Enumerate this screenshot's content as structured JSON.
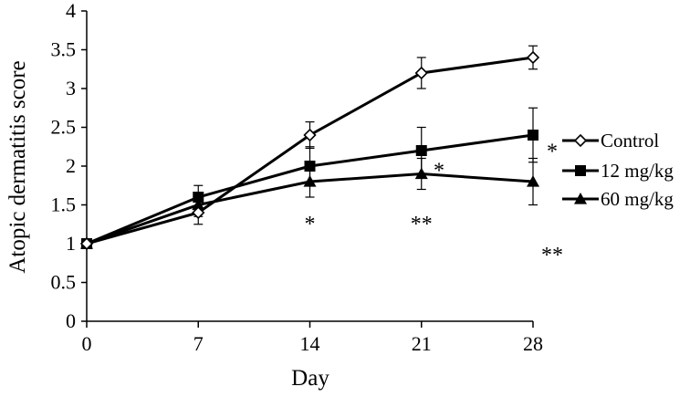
{
  "chart_data": {
    "type": "line",
    "xlabel": "Day",
    "ylabel": "Atopic dermatitis score",
    "x": [
      0,
      7,
      14,
      21,
      28
    ],
    "xticks": [
      0,
      7,
      14,
      21,
      28
    ],
    "xlim": [
      0,
      28
    ],
    "ylim": [
      0,
      4
    ],
    "yticks": [
      0,
      0.5,
      1,
      1.5,
      2,
      2.5,
      3,
      3.5,
      4
    ],
    "grid": false,
    "legend_position": "right",
    "series": [
      {
        "name": "Control",
        "marker": "diamond-open",
        "values": [
          1.0,
          1.4,
          2.4,
          3.2,
          3.4
        ],
        "errors": [
          0,
          0.15,
          0.17,
          0.2,
          0.15
        ]
      },
      {
        "name": "12 mg/kg",
        "marker": "square",
        "values": [
          1.0,
          1.6,
          2.0,
          2.2,
          2.4
        ],
        "errors": [
          0,
          0.15,
          0.25,
          0.3,
          0.35
        ]
      },
      {
        "name": "60 mg/kg",
        "marker": "triangle",
        "values": [
          1.0,
          1.5,
          1.8,
          1.9,
          1.8
        ],
        "errors": [
          0,
          0.15,
          0.2,
          0.2,
          0.3
        ]
      }
    ],
    "annotations": [
      {
        "text": "*",
        "x": 14,
        "y": 1.28
      },
      {
        "text": "**",
        "x": 21,
        "y": 1.28
      },
      {
        "text": "*",
        "x": 22.1,
        "y": 1.97
      },
      {
        "text": "*",
        "x": 29.2,
        "y": 2.22
      },
      {
        "text": "**",
        "x": 29.2,
        "y": 0.88
      }
    ]
  }
}
